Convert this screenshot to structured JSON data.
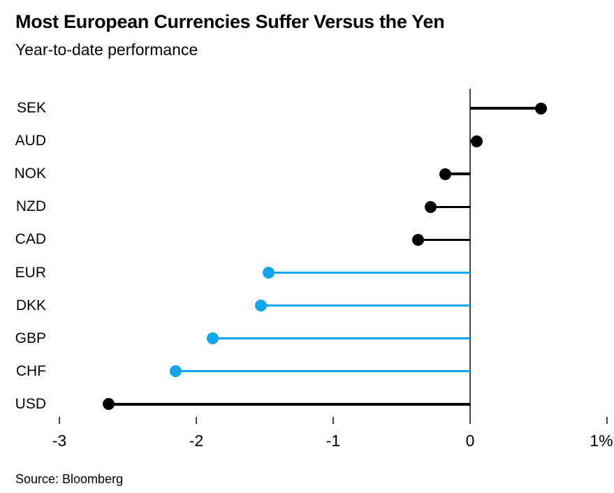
{
  "header": {
    "title": "Most European Currencies Suffer Versus the Yen",
    "subtitle": "Year-to-date performance"
  },
  "source_note": "Source: Bloomberg",
  "colors": {
    "black": "#000000",
    "blue": "#10a5ee",
    "axis": "#454545",
    "tick": "#4a4a4a",
    "background": "#ffffff"
  },
  "chart_data": {
    "type": "bar",
    "variant": "horizontal-lollipop",
    "title": "Most European Currencies Suffer Versus the Yen",
    "subtitle": "Year-to-date performance",
    "xlabel": "",
    "ylabel": "",
    "unit": "percent",
    "baseline": 0,
    "grid": false,
    "legend": "none",
    "categories": [
      "SEK",
      "AUD",
      "NOK",
      "NZD",
      "CAD",
      "EUR",
      "DKK",
      "GBP",
      "CHF",
      "USD"
    ],
    "values": [
      0.52,
      0.05,
      -0.18,
      -0.29,
      -0.38,
      -1.47,
      -1.53,
      -1.88,
      -2.15,
      -2.64
    ],
    "point_colors": [
      "black",
      "black",
      "black",
      "black",
      "black",
      "blue",
      "blue",
      "blue",
      "blue",
      "black"
    ],
    "x_axis": {
      "min": -3,
      "max": 1,
      "ticks": [
        -3,
        -2,
        -1,
        0,
        1
      ],
      "tick_labels": [
        "-3",
        "-2",
        "-1",
        "0",
        "1%"
      ]
    }
  }
}
